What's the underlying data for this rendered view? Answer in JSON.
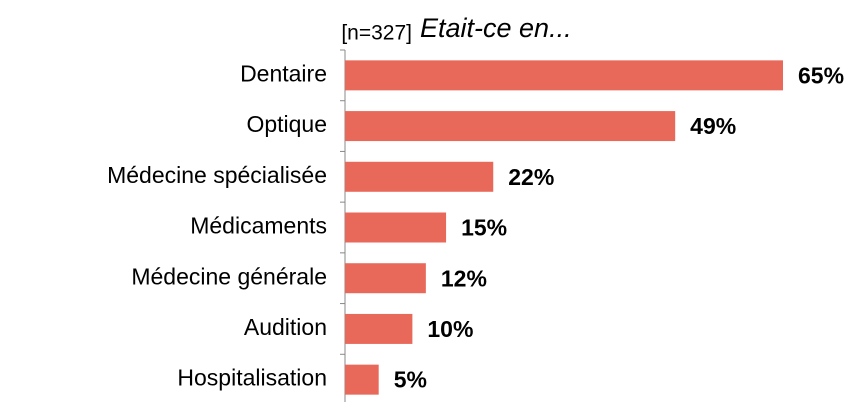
{
  "chart_data": {
    "type": "bar",
    "orientation": "horizontal",
    "subtitle": "[n=327]",
    "title": "Etait-ce en...",
    "categories": [
      "Dentaire",
      "Optique",
      "Médecine spécialisée",
      "Médicaments",
      "Médecine générale",
      "Audition",
      "Hospitalisation"
    ],
    "values": [
      65,
      49,
      22,
      15,
      12,
      10,
      5
    ],
    "value_labels": [
      "65%",
      "49%",
      "22%",
      "15%",
      "12%",
      "10%",
      "5%"
    ],
    "color": "#e8695a"
  }
}
